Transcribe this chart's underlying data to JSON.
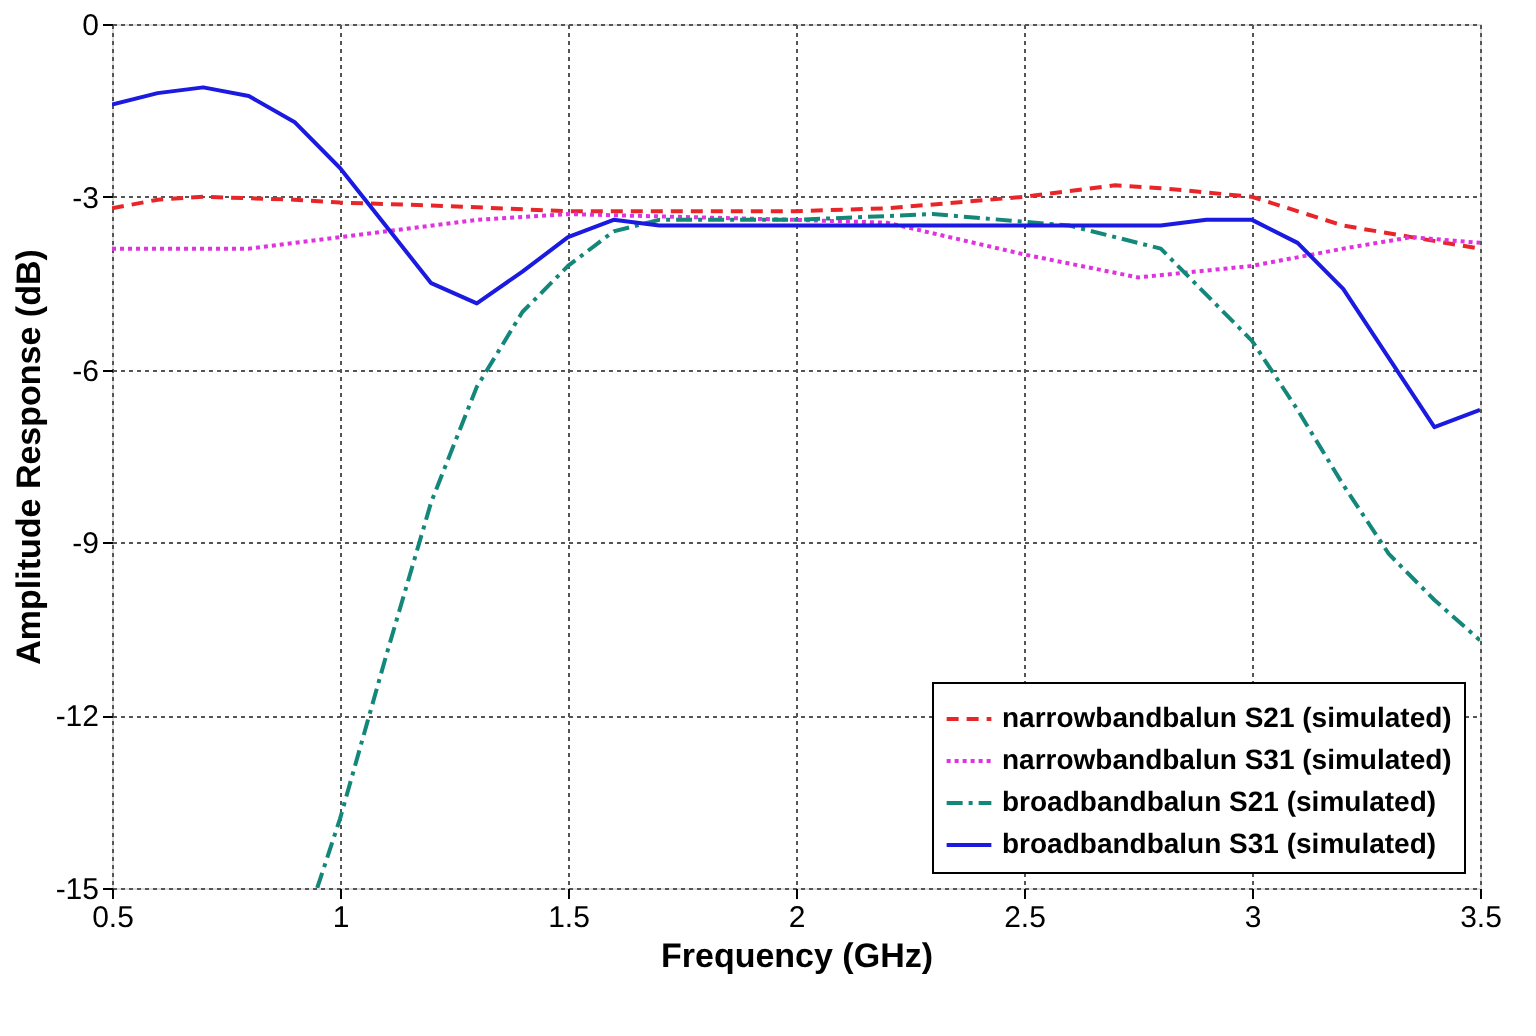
{
  "chart_data": {
    "type": "line",
    "xlabel": "Frequency (GHz)",
    "ylabel": "Amplitude Response (dB)",
    "xlim": [
      0.5,
      3.5
    ],
    "xticks": [
      0.5,
      1,
      1.5,
      2,
      2.5,
      3,
      3.5
    ],
    "ylim": [
      -15,
      0
    ],
    "yticks": [
      -15,
      -12,
      -9,
      -6,
      -3,
      0
    ],
    "grid": true,
    "legend": "bottom right",
    "marker": "none",
    "series": [
      {
        "name": "narrowbandbalun S21 (simulated)",
        "color": "#e8262a",
        "line_style": "dashed",
        "x": [
          0.5,
          0.6,
          0.7,
          0.9,
          1.0,
          1.2,
          1.5,
          2.0,
          2.2,
          2.5,
          2.7,
          2.8,
          3.0,
          3.2,
          3.35,
          3.5
        ],
        "values": [
          -3.2,
          -3.05,
          -3.0,
          -3.05,
          -3.1,
          -3.15,
          -3.25,
          -3.25,
          -3.2,
          -3.0,
          -2.8,
          -2.85,
          -3.0,
          -3.5,
          -3.7,
          -3.9
        ]
      },
      {
        "name": "narrowbandbalun S31 (simulated)",
        "color": "#e033e0",
        "line_style": "dotted",
        "x": [
          0.5,
          0.8,
          1.0,
          1.3,
          1.5,
          2.0,
          2.2,
          2.5,
          2.75,
          3.0,
          3.2,
          3.35,
          3.5
        ],
        "values": [
          -3.9,
          -3.9,
          -3.7,
          -3.4,
          -3.3,
          -3.4,
          -3.45,
          -4.0,
          -4.4,
          -4.2,
          -3.9,
          -3.7,
          -3.8
        ]
      },
      {
        "name": "broadbandbalun S21 (simulated)",
        "color": "#13877a",
        "line_style": "dashdot",
        "x": [
          0.95,
          1.0,
          1.1,
          1.2,
          1.3,
          1.4,
          1.5,
          1.6,
          1.7,
          2.0,
          2.3,
          2.6,
          2.8,
          3.0,
          3.1,
          3.2,
          3.3,
          3.4,
          3.5
        ],
        "values": [
          -15,
          -13.8,
          -11.0,
          -8.3,
          -6.3,
          -5.0,
          -4.2,
          -3.6,
          -3.4,
          -3.4,
          -3.3,
          -3.5,
          -3.9,
          -5.5,
          -6.7,
          -8.0,
          -9.2,
          -10.0,
          -10.7
        ]
      },
      {
        "name": "broadbandbalun S31 (simulated)",
        "color": "#1a1ae0",
        "line_style": "solid",
        "x": [
          0.5,
          0.6,
          0.7,
          0.8,
          0.9,
          1.0,
          1.1,
          1.2,
          1.3,
          1.4,
          1.5,
          1.6,
          1.7,
          2.0,
          2.5,
          2.8,
          2.9,
          3.0,
          3.1,
          3.2,
          3.4,
          3.5
        ],
        "values": [
          -1.4,
          -1.2,
          -1.1,
          -1.25,
          -1.7,
          -2.5,
          -3.5,
          -4.5,
          -4.85,
          -4.3,
          -3.7,
          -3.4,
          -3.5,
          -3.5,
          -3.5,
          -3.5,
          -3.4,
          -3.4,
          -3.8,
          -4.6,
          -7.0,
          -6.7
        ]
      }
    ]
  }
}
